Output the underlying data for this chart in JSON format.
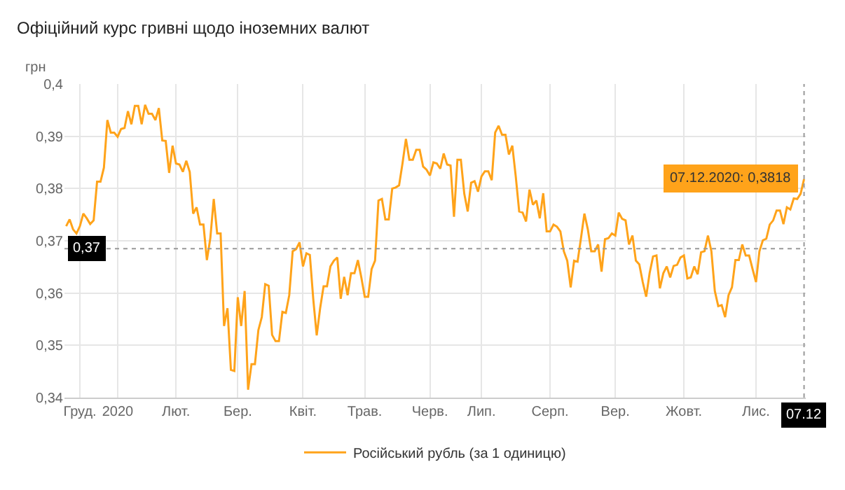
{
  "chart_data": {
    "type": "line",
    "title": "Офіційний курс гривні щодо іноземних валют",
    "ylabel": "грн",
    "categories": [
      null,
      null,
      null,
      null,
      "Груд.",
      null,
      null,
      null,
      null,
      null,
      null,
      null,
      null,
      null,
      null,
      "2020",
      null,
      null,
      null,
      null,
      null,
      null,
      null,
      null,
      null,
      null,
      null,
      null,
      null,
      null,
      null,
      null,
      "Лют.",
      null,
      null,
      null,
      null,
      null,
      null,
      null,
      null,
      null,
      null,
      null,
      null,
      null,
      null,
      null,
      null,
      null,
      "Бер.",
      null,
      null,
      null,
      null,
      null,
      null,
      null,
      null,
      null,
      null,
      null,
      null,
      null,
      null,
      null,
      null,
      null,
      null,
      "Квіт.",
      null,
      null,
      null,
      null,
      null,
      null,
      null,
      null,
      null,
      null,
      null,
      null,
      null,
      null,
      null,
      null,
      null,
      "Трав.",
      null,
      null,
      null,
      null,
      null,
      null,
      null,
      null,
      null,
      null,
      null,
      null,
      null,
      null,
      null,
      null,
      null,
      null,
      "Черв.",
      null,
      null,
      null,
      null,
      null,
      null,
      null,
      null,
      null,
      null,
      null,
      null,
      null,
      null,
      "Лип.",
      null,
      null,
      null,
      null,
      null,
      null,
      null,
      null,
      null,
      null,
      null,
      null,
      null,
      null,
      null,
      null,
      null,
      null,
      null,
      "Серп.",
      null,
      null,
      null,
      null,
      null,
      null,
      null,
      null,
      null,
      null,
      null,
      null,
      null,
      null,
      null,
      null,
      null,
      null,
      "Вер.",
      null,
      null,
      null,
      null,
      null,
      null,
      null,
      null,
      null,
      null,
      null,
      null,
      null,
      null,
      null,
      null,
      null,
      null,
      null,
      "Жовт.",
      null,
      null,
      null,
      null,
      null,
      null,
      null,
      null,
      null,
      null,
      null,
      null,
      null,
      null,
      null,
      null,
      null,
      null,
      null,
      null,
      "Лис.",
      null,
      null,
      null,
      null,
      null,
      null,
      null,
      null,
      null,
      null,
      null,
      null,
      null,
      "07.12"
    ],
    "ylim": [
      0.34,
      0.4
    ],
    "yticks": [
      {
        "value": 0.34,
        "label": "0,34"
      },
      {
        "value": 0.35,
        "label": "0,35"
      },
      {
        "value": 0.36,
        "label": "0,36"
      },
      {
        "value": 0.37,
        "label": "0,37"
      },
      {
        "value": 0.38,
        "label": "0,38"
      },
      {
        "value": 0.39,
        "label": "0,39"
      },
      {
        "value": 0.4,
        "label": "0,4"
      }
    ],
    "grid": true,
    "legend": "bottom",
    "marker": "none",
    "line_style": "solid",
    "ref_lines": [
      {
        "axis": "y",
        "value": 0.3685,
        "label": "0,37",
        "line_style": "dotted",
        "color": "#999999"
      },
      {
        "axis": "x",
        "value": "07.12",
        "label": "07.12",
        "line_style": "dotted",
        "color": "#999999"
      }
    ],
    "annotations": [
      {
        "text": "07.12.2020: 0,3818",
        "x": "07.12",
        "y": 0.3818
      }
    ],
    "series": [
      {
        "name": "Російський рубль (за 1 одиницю)",
        "color": "#ffa31a",
        "values": [
          0.3728,
          0.3741,
          0.3722,
          0.3714,
          0.3728,
          0.3752,
          0.3743,
          0.3732,
          0.3739,
          0.3813,
          0.3813,
          0.384,
          0.3931,
          0.3907,
          0.3907,
          0.3899,
          0.3914,
          0.3916,
          0.3948,
          0.3923,
          0.3958,
          0.3958,
          0.3923,
          0.396,
          0.3943,
          0.3943,
          0.3931,
          0.3954,
          0.3892,
          0.3891,
          0.383,
          0.3882,
          0.3848,
          0.3846,
          0.3832,
          0.3853,
          0.3832,
          0.3752,
          0.3764,
          0.3731,
          0.3731,
          0.3663,
          0.3705,
          0.378,
          0.3714,
          0.3714,
          0.3537,
          0.3571,
          0.3453,
          0.3451,
          0.3592,
          0.3537,
          0.3604,
          0.3415,
          0.3464,
          0.3464,
          0.3529,
          0.3554,
          0.3617,
          0.3614,
          0.352,
          0.3508,
          0.3508,
          0.3564,
          0.3562,
          0.3596,
          0.368,
          0.3684,
          0.3697,
          0.3651,
          0.3676,
          0.3673,
          0.3588,
          0.3519,
          0.3571,
          0.3613,
          0.3613,
          0.3651,
          0.3662,
          0.3668,
          0.3589,
          0.3631,
          0.3596,
          0.3638,
          0.3638,
          0.3663,
          0.363,
          0.3593,
          0.3593,
          0.3646,
          0.3662,
          0.3777,
          0.378,
          0.3741,
          0.3741,
          0.38,
          0.3802,
          0.3806,
          0.3848,
          0.3895,
          0.3855,
          0.3855,
          0.3874,
          0.3874,
          0.3842,
          0.3836,
          0.3825,
          0.385,
          0.3848,
          0.3838,
          0.3867,
          0.3846,
          0.3844,
          0.3746,
          0.3855,
          0.3855,
          0.379,
          0.3756,
          0.3811,
          0.3814,
          0.3794,
          0.3823,
          0.3833,
          0.3833,
          0.3816,
          0.3907,
          0.392,
          0.3903,
          0.3903,
          0.3865,
          0.3882,
          0.3823,
          0.3756,
          0.3754,
          0.3737,
          0.3798,
          0.3769,
          0.3777,
          0.3743,
          0.3791,
          0.3718,
          0.3718,
          0.3731,
          0.3727,
          0.3718,
          0.368,
          0.3662,
          0.3611,
          0.3662,
          0.366,
          0.3705,
          0.3752,
          0.3722,
          0.368,
          0.368,
          0.3693,
          0.3641,
          0.3703,
          0.3705,
          0.3714,
          0.371,
          0.3754,
          0.3742,
          0.3739,
          0.3693,
          0.371,
          0.3662,
          0.3655,
          0.3621,
          0.3593,
          0.3638,
          0.367,
          0.3672,
          0.3609,
          0.3638,
          0.3651,
          0.363,
          0.3652,
          0.3654,
          0.3668,
          0.3672,
          0.3628,
          0.363,
          0.3651,
          0.3636,
          0.3678,
          0.368,
          0.371,
          0.368,
          0.3604,
          0.3575,
          0.3577,
          0.3554,
          0.3596,
          0.3611,
          0.3663,
          0.3663,
          0.3693,
          0.3672,
          0.3672,
          0.3646,
          0.3621,
          0.368,
          0.3701,
          0.3704,
          0.3731,
          0.3739,
          0.3758,
          0.3758,
          0.3732,
          0.3764,
          0.376,
          0.3781,
          0.378,
          0.379,
          0.3818
        ]
      }
    ]
  }
}
